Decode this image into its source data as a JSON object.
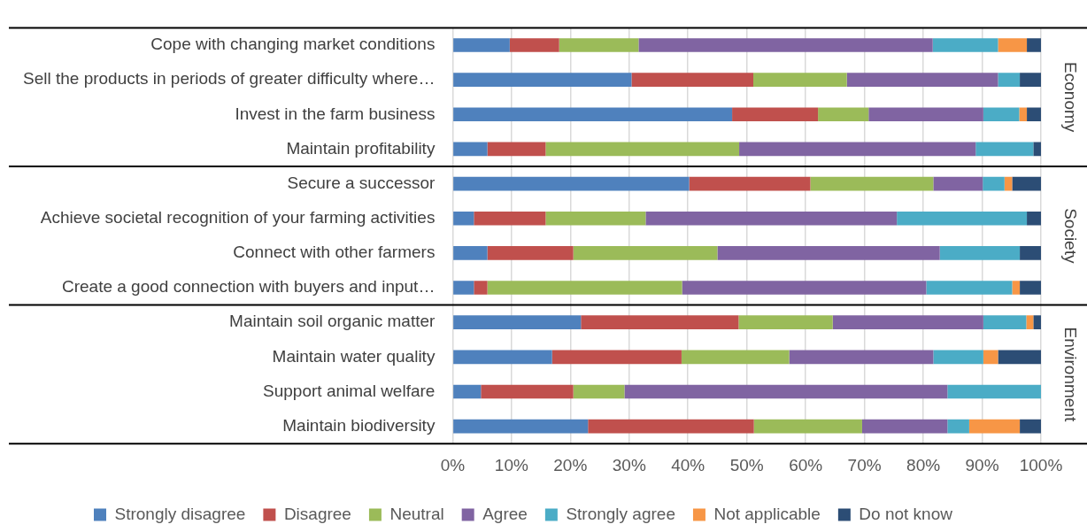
{
  "chart_data": {
    "type": "bar",
    "orientation": "horizontal",
    "stacked": true,
    "categories": [
      "Cope with changing market conditions",
      "Sell the products in periods of greater difficulty where…",
      "Invest in the farm business",
      "Maintain profitability",
      "Secure a successor",
      "Achieve societal recognition of your farming activities",
      "Connect with other farmers",
      "Create a good connection with buyers and input…",
      "Maintain soil organic matter",
      "Maintain water quality",
      "Support animal welfare",
      "Maintain biodiversity"
    ],
    "series": [
      {
        "name": "Strongly disagree",
        "color": "#4f81bd",
        "values": [
          9.7,
          30.4,
          47.5,
          5.9,
          40.2,
          3.6,
          5.9,
          3.6,
          21.8,
          16.9,
          4.8,
          23.0
        ]
      },
      {
        "name": "Disagree",
        "color": "#c0504d",
        "values": [
          8.4,
          20.7,
          14.6,
          9.9,
          20.6,
          12.2,
          14.6,
          2.3,
          26.8,
          22.0,
          15.7,
          28.2
        ]
      },
      {
        "name": "Neutral",
        "color": "#9bbb59",
        "values": [
          13.5,
          15.9,
          8.6,
          32.9,
          20.9,
          17.0,
          24.5,
          33.1,
          16.0,
          18.3,
          8.7,
          18.4
        ]
      },
      {
        "name": "Agree",
        "color": "#8064a2",
        "values": [
          50.0,
          25.7,
          19.5,
          40.2,
          8.4,
          42.7,
          37.8,
          41.5,
          25.6,
          24.5,
          54.9,
          14.5
        ]
      },
      {
        "name": "Strongly agree",
        "color": "#4bacc6",
        "values": [
          11.1,
          3.7,
          6.1,
          9.8,
          3.7,
          22.1,
          13.6,
          14.6,
          7.3,
          8.5,
          15.9,
          3.7
        ]
      },
      {
        "name": "Not applicable",
        "color": "#f79646",
        "values": [
          4.9,
          0,
          1.3,
          0,
          1.3,
          0,
          0,
          1.3,
          1.2,
          2.5,
          0,
          8.6
        ]
      },
      {
        "name": "Do not know",
        "color": "#2c4d75",
        "values": [
          2.4,
          3.6,
          2.4,
          1.3,
          4.9,
          2.4,
          3.6,
          3.6,
          1.3,
          7.3,
          0,
          3.6
        ]
      }
    ],
    "xlim": [
      0,
      100
    ],
    "xticks": [
      {
        "value": 0,
        "label": "0%"
      },
      {
        "value": 10,
        "label": "10%"
      },
      {
        "value": 20,
        "label": "20%"
      },
      {
        "value": 30,
        "label": "30%"
      },
      {
        "value": 40,
        "label": "40%"
      },
      {
        "value": 50,
        "label": "50%"
      },
      {
        "value": 60,
        "label": "60%"
      },
      {
        "value": 70,
        "label": "70%"
      },
      {
        "value": 80,
        "label": "80%"
      },
      {
        "value": 90,
        "label": "90%"
      },
      {
        "value": 100,
        "label": "100%"
      }
    ],
    "grid": "x",
    "legend": "bottom",
    "annotations": [
      "Economy",
      "Society",
      "Environment"
    ]
  }
}
